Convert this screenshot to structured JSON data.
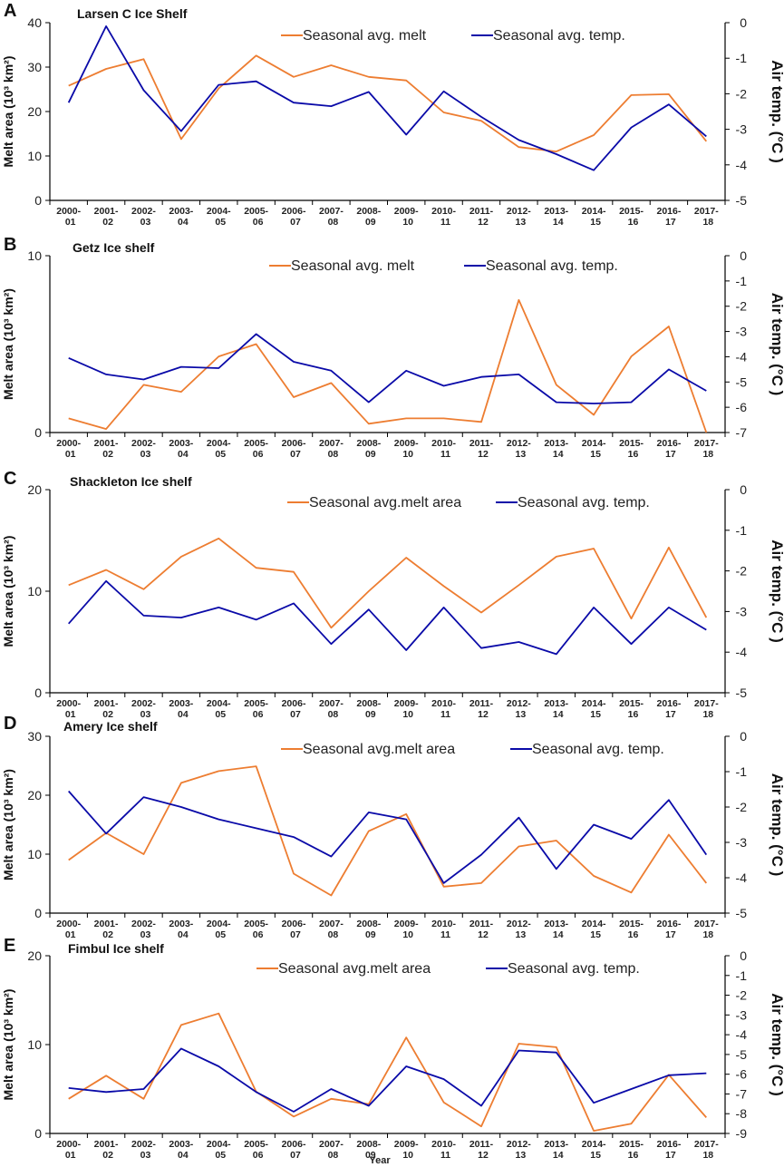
{
  "colors": {
    "melt": "#ED7D31",
    "temp": "#0A0AA8"
  },
  "figure": {
    "xlabel": "Year"
  },
  "chart_data": [
    {
      "type": "line",
      "panel": "A",
      "title": "Larsen C Ice Shelf",
      "categories": [
        "2000-01",
        "2001-02",
        "2002-03",
        "2003-04",
        "2004-05",
        "2005-06",
        "2006-07",
        "2007-08",
        "2008-09",
        "2009-10",
        "2010-11",
        "2011-12",
        "2012-13",
        "2013-14",
        "2014-15",
        "2015-16",
        "2016-17",
        "2017-18"
      ],
      "cat_top": [
        "2000-",
        "2001-",
        "2002-",
        "2003-",
        "2004-",
        "2005-",
        "2006-",
        "2007-",
        "2008-",
        "2009-",
        "2010-",
        "2011-",
        "2012-",
        "2013-",
        "2014-",
        "2015-",
        "2016-",
        "2017-"
      ],
      "cat_bottom": [
        "01",
        "02",
        "03",
        "04",
        "05",
        "06",
        "07",
        "08",
        "09",
        "10",
        "11",
        "12",
        "13",
        "14",
        "15",
        "16",
        "17",
        "18"
      ],
      "ylabel": "Melt area (10³ km²)",
      "y2label": "Air temp. (°C )",
      "ylim": [
        0,
        40
      ],
      "yticks": [
        0,
        10,
        20,
        30,
        40
      ],
      "y2lim": [
        -5,
        0
      ],
      "y2ticks": [
        0,
        -1,
        -2,
        -3,
        -4,
        -5
      ],
      "series": [
        {
          "name": "Seasonal avg. melt",
          "axis": "left",
          "color": "#ED7D31",
          "values": [
            25.8,
            29.6,
            31.8,
            13.8,
            25.2,
            32.6,
            27.8,
            30.4,
            27.8,
            27.0,
            19.8,
            17.9,
            12.0,
            11.0,
            14.7,
            23.7,
            23.9,
            13.3
          ]
        },
        {
          "name": "Seasonal avg. temp.",
          "axis": "right",
          "color": "#0A0AA8",
          "values": [
            -2.25,
            -0.1,
            -1.9,
            -3.05,
            -1.75,
            -1.65,
            -2.25,
            -2.35,
            -1.95,
            -3.15,
            -1.93,
            -2.65,
            -3.3,
            -3.7,
            -4.15,
            -2.95,
            -2.3,
            -3.2
          ]
        }
      ]
    },
    {
      "type": "line",
      "panel": "B",
      "title": "Getz Ice shelf",
      "categories": [
        "2000-01",
        "2001-02",
        "2002-03",
        "2003-04",
        "2004-05",
        "2005-06",
        "2006-07",
        "2007-08",
        "2008-09",
        "2009-10",
        "2010-11",
        "2011-12",
        "2012-13",
        "2013-14",
        "2014-15",
        "2015-16",
        "2016-17",
        "2017-18"
      ],
      "cat_top": [
        "2000-",
        "2001-",
        "2002-",
        "2003-",
        "2004-",
        "2005-",
        "2006-",
        "2007-",
        "2008-",
        "2009-",
        "2010-",
        "2011-",
        "2012-",
        "2013-",
        "2014-",
        "2015-",
        "2016-",
        "2017-"
      ],
      "cat_bottom": [
        "01",
        "02",
        "03",
        "04",
        "05",
        "06",
        "07",
        "08",
        "09",
        "10",
        "11",
        "12",
        "13",
        "14",
        "15",
        "16",
        "17",
        "18"
      ],
      "ylabel": "Melt area (10³ km²)",
      "y2label": "Air temp. (°C )",
      "ylim": [
        0,
        10
      ],
      "yticks": [
        0,
        10
      ],
      "y2lim": [
        -7,
        0
      ],
      "y2ticks": [
        0,
        -1,
        -2,
        -3,
        -4,
        -5,
        -6,
        -7
      ],
      "series": [
        {
          "name": "Seasonal avg. melt",
          "axis": "left",
          "color": "#ED7D31",
          "values": [
            0.8,
            0.2,
            2.7,
            2.3,
            4.3,
            5.0,
            2.0,
            2.8,
            0.5,
            0.8,
            0.8,
            0.6,
            7.5,
            2.7,
            1.0,
            4.3,
            6.0,
            0.0
          ]
        },
        {
          "name": "Seasonal avg. temp.",
          "axis": "right",
          "color": "#0A0AA8",
          "values": [
            -4.05,
            -4.7,
            -4.9,
            -4.4,
            -4.45,
            -3.1,
            -4.2,
            -4.55,
            -5.8,
            -4.55,
            -5.15,
            -4.8,
            -4.7,
            -5.8,
            -5.85,
            -5.8,
            -4.5,
            -5.35
          ]
        }
      ]
    },
    {
      "type": "line",
      "panel": "C",
      "title": "Shackleton Ice shelf",
      "categories": [
        "2000-01",
        "2001-02",
        "2002-03",
        "2003-04",
        "2004-05",
        "2005-06",
        "2006-07",
        "2007-08",
        "2008-09",
        "2009-10",
        "2010-11",
        "2011-12",
        "2012-13",
        "2013-14",
        "2014-15",
        "2015-16",
        "2016-17",
        "2017-18"
      ],
      "cat_top": [
        "2000-",
        "2001-",
        "2002-",
        "2003-",
        "2004-",
        "2005-",
        "2006-",
        "2007-",
        "2008-",
        "2009-",
        "2010-",
        "2011-",
        "2012-",
        "2013-",
        "2014-",
        "2015-",
        "2016-",
        "2017-"
      ],
      "cat_bottom": [
        "01",
        "02",
        "03",
        "04",
        "05",
        "06",
        "07",
        "08",
        "09",
        "10",
        "11",
        "12",
        "13",
        "14",
        "15",
        "16",
        "17",
        "18"
      ],
      "ylabel": "Melt area (10³ km²)",
      "y2label": "Air temp. (°C )",
      "ylim": [
        0,
        20
      ],
      "yticks": [
        0,
        10,
        20
      ],
      "y2lim": [
        -5,
        0
      ],
      "y2ticks": [
        0,
        -1,
        -2,
        -3,
        -4,
        -5
      ],
      "series": [
        {
          "name": "Seasonal avg.melt area",
          "axis": "left",
          "color": "#ED7D31",
          "values": [
            10.6,
            12.1,
            10.2,
            13.4,
            15.2,
            12.3,
            11.9,
            6.4,
            10.0,
            13.3,
            10.5,
            7.9,
            10.6,
            13.4,
            14.2,
            7.3,
            14.3,
            7.4
          ]
        },
        {
          "name": "Seasonal avg. temp.",
          "axis": "right",
          "color": "#0A0AA8",
          "values": [
            -3.3,
            -2.25,
            -3.1,
            -3.15,
            -2.9,
            -3.2,
            -2.8,
            -3.8,
            -2.95,
            -3.95,
            -2.9,
            -3.9,
            -3.75,
            -4.05,
            -2.9,
            -3.8,
            -2.9,
            -3.45
          ]
        }
      ]
    },
    {
      "type": "line",
      "panel": "D",
      "title": "Amery Ice shelf",
      "categories": [
        "2000-01",
        "2001-02",
        "2002-03",
        "2003-04",
        "2004-05",
        "2005-06",
        "2006-07",
        "2007-08",
        "2008-09",
        "2009-10",
        "2010-11",
        "2011-12",
        "2012-13",
        "2013-14",
        "2014-15",
        "2015-16",
        "2016-17",
        "2017-18"
      ],
      "cat_top": [
        "2000-",
        "2001-",
        "2002-",
        "2003-",
        "2004-",
        "2005-",
        "2006-",
        "2007-",
        "2008-",
        "2009-",
        "2010-",
        "2011-",
        "2012-",
        "2013-",
        "2014-",
        "2015-",
        "2016-",
        "2017-"
      ],
      "cat_bottom": [
        "01",
        "02",
        "03",
        "04",
        "05",
        "06",
        "07",
        "08",
        "09",
        "10",
        "11",
        "12",
        "13",
        "14",
        "15",
        "16",
        "17",
        "18"
      ],
      "ylabel": "Melt area (10³ km²)",
      "y2label": "Air temp. (°C )",
      "ylim": [
        0,
        30
      ],
      "yticks": [
        0,
        10,
        20,
        30
      ],
      "y2lim": [
        -5,
        0
      ],
      "y2ticks": [
        0,
        -1,
        -2,
        -3,
        -4,
        -5
      ],
      "series": [
        {
          "name": "Seasonal avg.melt area",
          "axis": "left",
          "color": "#ED7D31",
          "values": [
            9.0,
            13.6,
            10.0,
            22.1,
            24.1,
            24.9,
            6.7,
            3.0,
            13.9,
            16.8,
            4.5,
            5.1,
            11.3,
            12.3,
            6.3,
            3.5,
            13.3,
            5.1
          ]
        },
        {
          "name": "Seasonal avg. temp.",
          "axis": "right",
          "color": "#0A0AA8",
          "values": [
            -1.55,
            -2.75,
            -1.72,
            -2.0,
            -2.35,
            -2.6,
            -2.85,
            -3.4,
            -2.15,
            -2.35,
            -4.15,
            -3.35,
            -2.3,
            -3.75,
            -2.5,
            -2.9,
            -1.8,
            -3.35
          ]
        }
      ]
    },
    {
      "type": "line",
      "panel": "E",
      "title": "Fimbul Ice shelf",
      "categories": [
        "2000-01",
        "2001-02",
        "2002-03",
        "2003-04",
        "2004-05",
        "2005-06",
        "2006-07",
        "2007-08",
        "2008-09",
        "2009-10",
        "2010-11",
        "2011-12",
        "2012-13",
        "2013-14",
        "2014-15",
        "2015-16",
        "2016-17",
        "2017-18"
      ],
      "cat_top": [
        "2000-",
        "2001-",
        "2002-",
        "2003-",
        "2004-",
        "2005-",
        "2006-",
        "2007-",
        "2008-",
        "2009-",
        "2010-",
        "2011-",
        "2012-",
        "2013-",
        "2014-",
        "2015-",
        "2016-",
        "2017-"
      ],
      "cat_bottom": [
        "01",
        "02",
        "03",
        "04",
        "05",
        "06",
        "07",
        "08",
        "09",
        "10",
        "11",
        "12",
        "13",
        "14",
        "15",
        "16",
        "17",
        "18"
      ],
      "ylabel": "Melt area (10³ km²)",
      "y2label": "Air temp. (°C )",
      "ylim": [
        0,
        20
      ],
      "yticks": [
        0,
        10,
        20
      ],
      "y2lim": [
        -9,
        0
      ],
      "y2ticks": [
        0,
        -1,
        -2,
        -3,
        -4,
        -5,
        -6,
        -7,
        -8,
        -9
      ],
      "series": [
        {
          "name": "Seasonal avg.melt area",
          "axis": "left",
          "color": "#ED7D31",
          "values": [
            3.9,
            6.5,
            3.9,
            12.2,
            13.5,
            4.7,
            1.9,
            3.9,
            3.3,
            10.8,
            3.5,
            0.8,
            10.1,
            9.7,
            0.3,
            1.1,
            6.6,
            1.8
          ]
        },
        {
          "name": "Seasonal avg. temp.",
          "axis": "right",
          "color": "#0A0AA8",
          "values": [
            -6.7,
            -6.9,
            -6.75,
            -4.7,
            -5.6,
            -6.9,
            -7.9,
            -6.75,
            -7.6,
            -5.6,
            -6.25,
            -7.6,
            -4.8,
            -4.9,
            -7.45,
            -6.75,
            -6.05,
            -5.95
          ]
        }
      ]
    }
  ]
}
